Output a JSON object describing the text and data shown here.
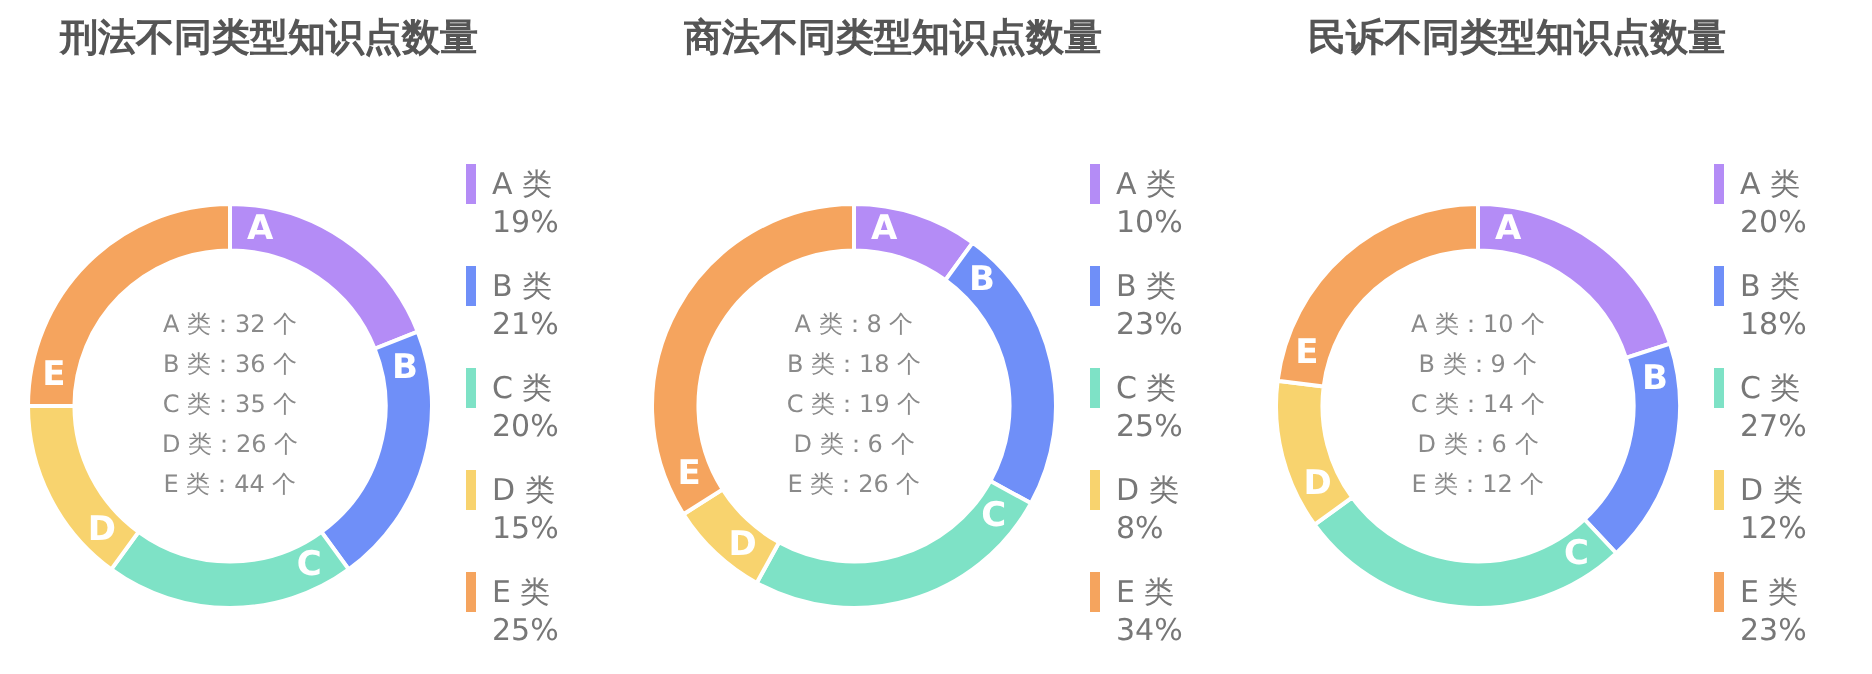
{
  "chart_data": [
    {
      "type": "donut",
      "title": "刑法不同类型知识点数量",
      "categories": [
        "A 类",
        "B 类",
        "C 类",
        "D 类",
        "E 类"
      ],
      "values": [
        19,
        21,
        20,
        15,
        25
      ],
      "value_labels": [
        "19%",
        "21%",
        "20%",
        "15%",
        "25%"
      ],
      "colors": [
        "#b48cf6",
        "#6f8ff8",
        "#7ee2c6",
        "#f8d36e",
        "#f5a45e"
      ],
      "legend": "right",
      "annotations": [
        {
          "text": "A",
          "x": "A 类"
        },
        {
          "text": "B",
          "x": "B 类"
        },
        {
          "text": "C",
          "x": "C 类"
        },
        {
          "text": "D",
          "x": "D 类"
        },
        {
          "text": "E",
          "x": "E 类"
        },
        "A 类：32 个",
        "B 类：36 个",
        "C 类：35 个",
        "D 类：26 个",
        "E 类：44 个"
      ]
    },
    {
      "type": "donut",
      "title": "商法不同类型知识点数量",
      "categories": [
        "A 类",
        "B 类",
        "C 类",
        "D 类",
        "E 类"
      ],
      "values": [
        10,
        23,
        25,
        8,
        34
      ],
      "value_labels": [
        "10%",
        "23%",
        "25%",
        "8%",
        "34%"
      ],
      "colors": [
        "#b48cf6",
        "#6f8ff8",
        "#7ee2c6",
        "#f8d36e",
        "#f5a45e"
      ],
      "legend": "right",
      "annotations": [
        {
          "text": "A",
          "x": "A 类"
        },
        {
          "text": "B",
          "x": "B 类"
        },
        {
          "text": "C",
          "x": "C 类"
        },
        {
          "text": "D",
          "x": "D 类"
        },
        {
          "text": "E",
          "x": "E 类"
        },
        "A 类：8 个",
        "B 类：18 个",
        "C 类：19 个",
        "D 类：6 个",
        "E 类：26 个"
      ]
    },
    {
      "type": "donut",
      "title": "民诉不同类型知识点数量",
      "categories": [
        "A 类",
        "B 类",
        "C 类",
        "D 类",
        "E 类"
      ],
      "values": [
        20,
        18,
        27,
        12,
        23
      ],
      "value_labels": [
        "20%",
        "18%",
        "27%",
        "12%",
        "23%"
      ],
      "colors": [
        "#b48cf6",
        "#6f8ff8",
        "#7ee2c6",
        "#f8d36e",
        "#f5a45e"
      ],
      "legend": "right",
      "annotations": [
        {
          "text": "A",
          "x": "A 类"
        },
        {
          "text": "B",
          "x": "B 类"
        },
        {
          "text": "C",
          "x": "C 类"
        },
        {
          "text": "D",
          "x": "D 类"
        },
        {
          "text": "E",
          "x": "E 类"
        },
        "A 类：10 个",
        "B 类：9 个",
        "C 类：14 个",
        "D 类：6 个",
        "E 类：12 个"
      ]
    }
  ]
}
